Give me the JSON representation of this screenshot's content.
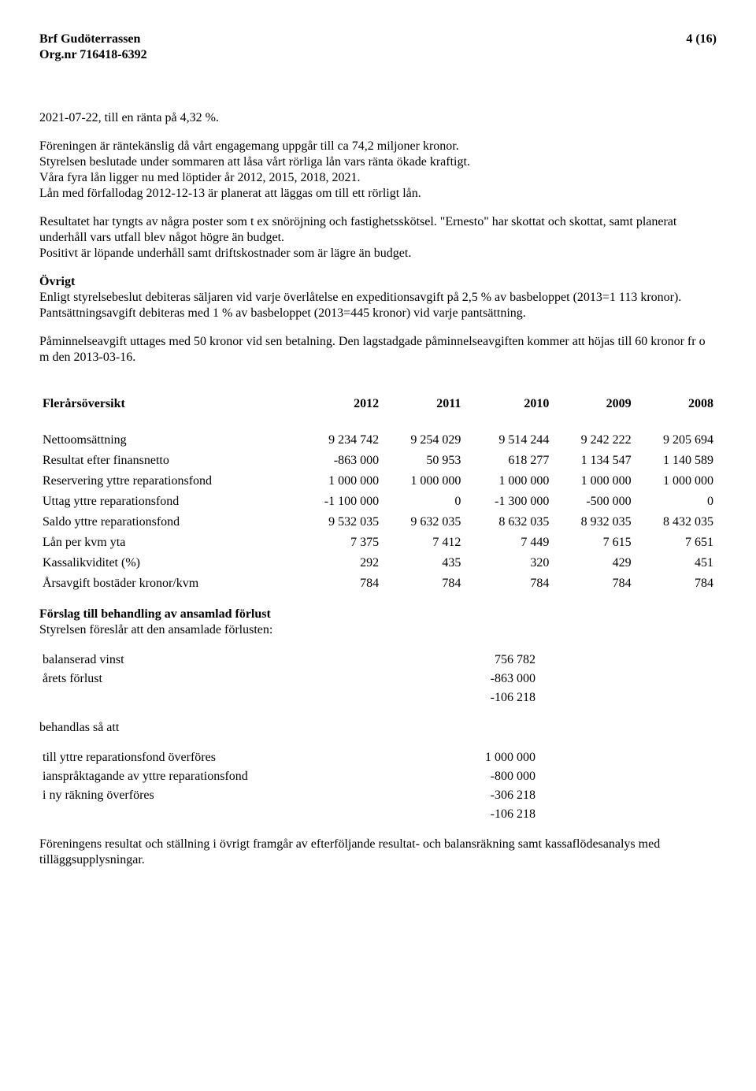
{
  "header": {
    "company": "Brf Gudöterrassen",
    "page": "4 (16)",
    "orgnr": "Org.nr 716418-6392"
  },
  "intro_line": "2021-07-22, till en ränta på 4,32 %.",
  "para1": "Föreningen är räntekänslig då vårt engagemang uppgår till ca 74,2 miljoner kronor.",
  "para2": "Styrelsen beslutade under sommaren att låsa vårt rörliga lån vars ränta ökade kraftigt.",
  "para3": "Våra fyra lån ligger nu med löptider år 2012, 2015, 2018, 2021.",
  "para4": "Lån med förfallodag 2012-12-13 är planerat att läggas om till ett rörligt lån.",
  "para5": "Resultatet har tyngts av några poster som t ex snöröjning och fastighetsskötsel. \"Ernesto\" har skottat och skottat, samt planerat underhåll vars utfall blev något högre än budget.",
  "para6": "Positivt är löpande underhåll samt driftskostnader som är lägre än budget.",
  "ovrigt_heading": "Övrigt",
  "ovrigt_para1": "Enligt styrelsebeslut debiteras säljaren vid varje överlåtelse en expeditionsavgift på 2,5 % av basbeloppet (2013=1 113 kronor). Pantsättningsavgift debiteras med 1 % av basbeloppet (2013=445 kronor) vid varje pantsättning.",
  "ovrigt_para2": "Påminnelseavgift uttages med 50 kronor vid sen betalning. Den lagstadgade påminnelseavgiften kommer att höjas till 60 kronor fr o m den 2013-03-16.",
  "overview": {
    "heading": "Flerårsöversikt",
    "years": [
      "2012",
      "2011",
      "2010",
      "2009",
      "2008"
    ],
    "rows": [
      {
        "label": "Nettoomsättning",
        "values": [
          "9 234 742",
          "9 254 029",
          "9 514 244",
          "9 242 222",
          "9 205 694"
        ]
      },
      {
        "label": "Resultat efter finansnetto",
        "values": [
          "-863 000",
          "50 953",
          "618 277",
          "1 134 547",
          "1 140 589"
        ]
      },
      {
        "label": "Reservering yttre reparationsfond",
        "values": [
          "1 000 000",
          "1 000 000",
          "1 000 000",
          "1 000 000",
          "1 000 000"
        ]
      },
      {
        "label": "Uttag yttre reparationsfond",
        "values": [
          "-1 100 000",
          "0",
          "-1 300 000",
          "-500 000",
          "0"
        ]
      },
      {
        "label": "Saldo yttre reparationsfond",
        "values": [
          "9 532 035",
          "9 632 035",
          "8 632 035",
          "8 932 035",
          "8 432 035"
        ]
      },
      {
        "label": "Lån per kvm yta",
        "values": [
          "7 375",
          "7 412",
          "7 449",
          "7 615",
          "7 651"
        ]
      },
      {
        "label": "Kassalikviditet (%)",
        "values": [
          "292",
          "435",
          "320",
          "429",
          "451"
        ]
      },
      {
        "label": "Årsavgift bostäder kronor/kvm",
        "values": [
          "784",
          "784",
          "784",
          "784",
          "784"
        ]
      }
    ]
  },
  "proposal": {
    "heading": "Förslag till behandling av ansamlad förlust",
    "subline": "Styrelsen föreslår att den ansamlade förlusten:",
    "block1": [
      {
        "label": "balanserad vinst",
        "value": "756 782"
      },
      {
        "label": "årets förlust",
        "value": "-863 000"
      }
    ],
    "total1": "-106 218",
    "behandlas": "behandlas så att",
    "block2": [
      {
        "label": "till yttre reparationsfond överföres",
        "value": "1 000 000"
      },
      {
        "label": "ianspråktagande av yttre reparationsfond",
        "value": "-800 000"
      },
      {
        "label": "i ny räkning överföres",
        "value": "-306 218"
      }
    ],
    "total2": "-106 218"
  },
  "footer_para": "Föreningens resultat och ställning i övrigt framgår av efterföljande resultat- och balansräkning samt kassaflödesanalys med tilläggsupplysningar."
}
